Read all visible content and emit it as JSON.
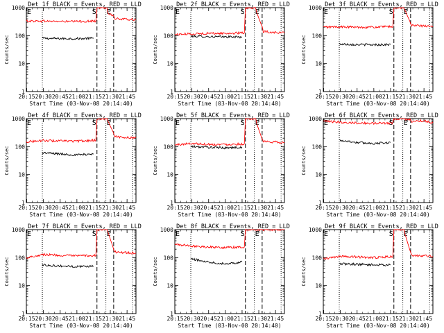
{
  "figure": {
    "start_time_label": "Start Time (03-Nov-08 20:14:40)",
    "ylabel": "Counts/sec",
    "y_ticks": [
      "1",
      "10",
      "100",
      "1000"
    ],
    "x_ticks": [
      "20:15",
      "20:30",
      "20:45",
      "21:00",
      "21:15",
      "21:30",
      "21:45"
    ],
    "colors": {
      "events": "#000000",
      "lld": "#ff0000",
      "axes": "#000000"
    },
    "markers": {
      "E1": "E",
      "S": "S",
      "E2": "E"
    }
  },
  "chart_data": [
    {
      "type": "line",
      "title": "Det 1f BLACK = Events, RED = LLD",
      "xlabel": "Start Time (03-Nov-08 20:14:40)",
      "ylabel": "Counts/sec",
      "y_scale": "log",
      "ylim": [
        1,
        1000
      ],
      "x_range": [
        "20:14:40",
        "21:53:00"
      ],
      "vlines_dotted": [
        "20:29",
        "21:26",
        "21:50"
      ],
      "vlines_dashed": [
        "21:18",
        "21:33"
      ],
      "series": [
        {
          "name": "Events",
          "color": "#000000",
          "x": [
            "20:29",
            "20:45",
            "21:00",
            "21:15"
          ],
          "y": [
            80,
            78,
            78,
            80
          ]
        },
        {
          "name": "LLD",
          "color": "#ff0000",
          "x": [
            "20:14:40",
            "20:30",
            "20:45",
            "21:00",
            "21:17",
            "21:18",
            "21:27",
            "21:28",
            "21:33",
            "21:34",
            "21:45",
            "21:53"
          ],
          "y": [
            330,
            330,
            320,
            320,
            330,
            1000,
            1000,
            650,
            500,
            400,
            380,
            370
          ]
        }
      ]
    },
    {
      "type": "line",
      "title": "Det 2f BLACK = Events, RED = LLD",
      "xlabel": "Start Time (03-Nov-08 20:14:40)",
      "ylabel": "Counts/sec",
      "y_scale": "log",
      "ylim": [
        1,
        1000
      ],
      "x_range": [
        "20:14:40",
        "21:53:00"
      ],
      "vlines_dotted": [
        "20:29",
        "21:26",
        "21:50"
      ],
      "vlines_dashed": [
        "21:18",
        "21:33"
      ],
      "series": [
        {
          "name": "Events",
          "color": "#000000",
          "x": [
            "20:29",
            "20:45",
            "21:00",
            "21:15"
          ],
          "y": [
            95,
            92,
            90,
            90
          ]
        },
        {
          "name": "LLD",
          "color": "#ff0000",
          "x": [
            "20:14:40",
            "20:30",
            "20:45",
            "21:00",
            "21:17",
            "21:18",
            "21:27",
            "21:28",
            "21:33",
            "21:34",
            "21:45",
            "21:53"
          ],
          "y": [
            110,
            115,
            120,
            120,
            125,
            1000,
            1000,
            700,
            200,
            140,
            130,
            125
          ]
        }
      ]
    },
    {
      "type": "line",
      "title": "Det 3f BLACK = Events, RED = LLD",
      "xlabel": "Start Time (03-Nov-08 20:14:40)",
      "ylabel": "Counts/sec",
      "y_scale": "log",
      "ylim": [
        1,
        1000
      ],
      "x_range": [
        "20:14:40",
        "21:53:00"
      ],
      "vlines_dotted": [
        "20:29",
        "21:26",
        "21:50"
      ],
      "vlines_dashed": [
        "21:18",
        "21:33"
      ],
      "series": [
        {
          "name": "Events",
          "color": "#000000",
          "x": [
            "20:29",
            "20:45",
            "21:00",
            "21:15"
          ],
          "y": [
            50,
            48,
            47,
            48
          ]
        },
        {
          "name": "LLD",
          "color": "#ff0000",
          "x": [
            "20:14:40",
            "20:30",
            "20:45",
            "21:00",
            "21:17",
            "21:18",
            "21:27",
            "21:28",
            "21:33",
            "21:34",
            "21:45",
            "21:53"
          ],
          "y": [
            200,
            205,
            200,
            200,
            210,
            1000,
            1000,
            800,
            280,
            230,
            220,
            210
          ]
        }
      ]
    },
    {
      "type": "line",
      "title": "Det 4f BLACK = Events, RED = LLD",
      "xlabel": "Start Time (03-Nov-08 20:14:40)",
      "ylabel": "Counts/sec",
      "y_scale": "log",
      "ylim": [
        1,
        1000
      ],
      "x_range": [
        "20:14:40",
        "21:53:00"
      ],
      "vlines_dotted": [
        "20:29",
        "21:26",
        "21:50"
      ],
      "vlines_dashed": [
        "21:18",
        "21:33"
      ],
      "series": [
        {
          "name": "Events",
          "color": "#000000",
          "x": [
            "20:29",
            "20:45",
            "21:00",
            "21:15"
          ],
          "y": [
            60,
            55,
            50,
            55
          ]
        },
        {
          "name": "LLD",
          "color": "#ff0000",
          "x": [
            "20:14:40",
            "20:30",
            "20:45",
            "21:00",
            "21:17",
            "21:18",
            "21:27",
            "21:28",
            "21:33",
            "21:34",
            "21:45",
            "21:53"
          ],
          "y": [
            150,
            165,
            160,
            155,
            170,
            1000,
            1000,
            800,
            300,
            230,
            210,
            205
          ]
        }
      ]
    },
    {
      "type": "line",
      "title": "Det 5f BLACK = Events, RED = LLD",
      "xlabel": "Start Time (03-Nov-08 20:14:40)",
      "ylabel": "Counts/sec",
      "y_scale": "log",
      "ylim": [
        1,
        1000
      ],
      "x_range": [
        "20:14:40",
        "21:53:00"
      ],
      "vlines_dotted": [
        "20:29",
        "21:26",
        "21:50"
      ],
      "vlines_dashed": [
        "21:18",
        "21:33"
      ],
      "series": [
        {
          "name": "Events",
          "color": "#000000",
          "x": [
            "20:29",
            "20:45",
            "21:00",
            "21:15"
          ],
          "y": [
            100,
            95,
            90,
            95
          ]
        },
        {
          "name": "LLD",
          "color": "#ff0000",
          "x": [
            "20:14:40",
            "20:30",
            "20:45",
            "21:00",
            "21:17",
            "21:18",
            "21:27",
            "21:28",
            "21:33",
            "21:34",
            "21:45",
            "21:53"
          ],
          "y": [
            115,
            130,
            120,
            120,
            125,
            1000,
            1000,
            700,
            180,
            150,
            145,
            140
          ]
        }
      ]
    },
    {
      "type": "line",
      "title": "Det 6f BLACK = Events, RED = LLD",
      "xlabel": "Start Time (03-Nov-08 20:14:40)",
      "ylabel": "Counts/sec",
      "y_scale": "log",
      "ylim": [
        1,
        1000
      ],
      "x_range": [
        "20:14:40",
        "21:53:00"
      ],
      "vlines_dotted": [
        "20:29",
        "21:26",
        "21:50"
      ],
      "vlines_dashed": [
        "21:18",
        "21:33"
      ],
      "series": [
        {
          "name": "Events",
          "color": "#000000",
          "x": [
            "20:29",
            "20:45",
            "21:00",
            "21:15"
          ],
          "y": [
            170,
            140,
            130,
            140
          ]
        },
        {
          "name": "LLD",
          "color": "#ff0000",
          "x": [
            "20:14:40",
            "20:30",
            "20:45",
            "21:00",
            "21:17",
            "21:18",
            "21:27",
            "21:28",
            "21:33",
            "21:34",
            "21:45",
            "21:53"
          ],
          "y": [
            800,
            750,
            700,
            680,
            700,
            1000,
            1000,
            950,
            900,
            800,
            850,
            700
          ]
        }
      ]
    },
    {
      "type": "line",
      "title": "Det 7f BLACK = Events, RED = LLD",
      "xlabel": "Start Time (03-Nov-08 20:14:40)",
      "ylabel": "Counts/sec",
      "y_scale": "log",
      "ylim": [
        1,
        1000
      ],
      "x_range": [
        "20:14:40",
        "21:53:00"
      ],
      "vlines_dotted": [
        "20:29",
        "21:26",
        "21:50"
      ],
      "vlines_dashed": [
        "21:18",
        "21:33"
      ],
      "series": [
        {
          "name": "Events",
          "color": "#000000",
          "x": [
            "20:29",
            "20:45",
            "21:00",
            "21:15"
          ],
          "y": [
            55,
            50,
            48,
            50
          ]
        },
        {
          "name": "LLD",
          "color": "#ff0000",
          "x": [
            "20:14:40",
            "20:30",
            "20:45",
            "21:00",
            "21:17",
            "21:18",
            "21:27",
            "21:28",
            "21:33",
            "21:34",
            "21:45",
            "21:53"
          ],
          "y": [
            100,
            130,
            120,
            115,
            120,
            1000,
            1000,
            800,
            200,
            160,
            150,
            145
          ]
        }
      ]
    },
    {
      "type": "line",
      "title": "Det 8f BLACK = Events, RED = LLD",
      "xlabel": "Start Time (03-Nov-08 20:14:40)",
      "ylabel": "Counts/sec",
      "y_scale": "log",
      "ylim": [
        1,
        1000
      ],
      "x_range": [
        "20:14:40",
        "21:53:00"
      ],
      "vlines_dotted": [
        "20:29",
        "21:26",
        "21:50"
      ],
      "vlines_dashed": [
        "21:18",
        "21:33"
      ],
      "series": [
        {
          "name": "Events",
          "color": "#000000",
          "x": [
            "20:29",
            "20:45",
            "21:00",
            "21:15"
          ],
          "y": [
            90,
            70,
            60,
            70
          ]
        },
        {
          "name": "LLD",
          "color": "#ff0000",
          "x": [
            "20:14:40",
            "20:30",
            "20:45",
            "21:00",
            "21:17",
            "21:18",
            "21:27",
            "21:28",
            "21:33",
            "21:34",
            "21:45",
            "21:53"
          ],
          "y": [
            300,
            260,
            240,
            230,
            240,
            1000,
            1000,
            1000,
            1000,
            1000,
            1000,
            1000
          ]
        }
      ]
    },
    {
      "type": "line",
      "title": "Det 9f BLACK = Events, RED = LLD",
      "xlabel": "Start Time (03-Nov-08 20:14:40)",
      "ylabel": "Counts/sec",
      "y_scale": "log",
      "ylim": [
        1,
        1000
      ],
      "x_range": [
        "20:14:40",
        "21:53:00"
      ],
      "vlines_dotted": [
        "20:29",
        "21:26",
        "21:50"
      ],
      "vlines_dashed": [
        "21:18",
        "21:33"
      ],
      "series": [
        {
          "name": "Events",
          "color": "#000000",
          "x": [
            "20:29",
            "20:45",
            "21:00",
            "21:15"
          ],
          "y": [
            60,
            58,
            55,
            55
          ]
        },
        {
          "name": "LLD",
          "color": "#ff0000",
          "x": [
            "20:14:40",
            "20:30",
            "20:45",
            "21:00",
            "21:17",
            "21:18",
            "21:27",
            "21:28",
            "21:33",
            "21:34",
            "21:45",
            "21:53"
          ],
          "y": [
            90,
            110,
            105,
            100,
            110,
            1000,
            1000,
            700,
            150,
            120,
            115,
            110
          ]
        }
      ]
    }
  ]
}
